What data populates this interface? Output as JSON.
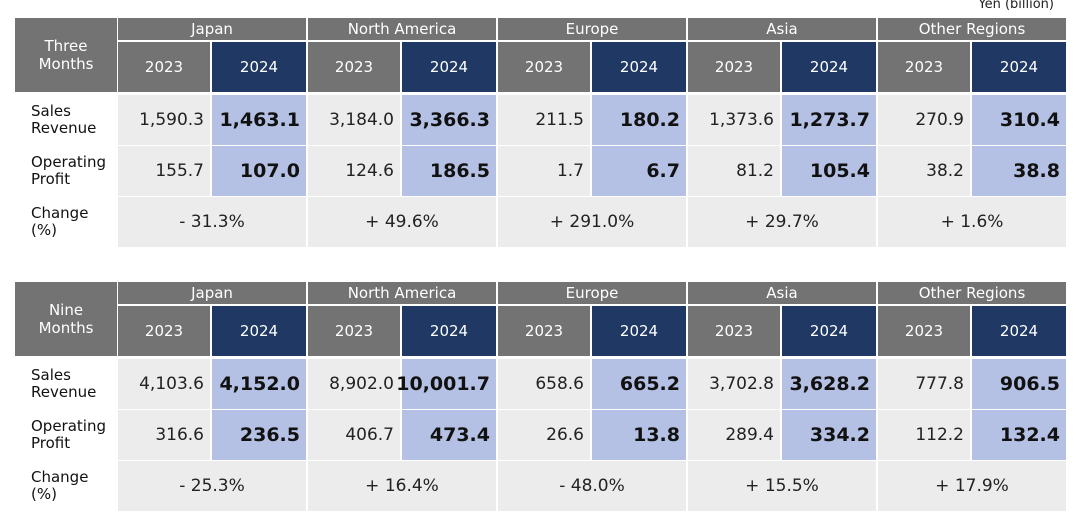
{
  "unit_label": "Yen (billion)",
  "tables": [
    {
      "period": [
        "Three",
        "Months"
      ],
      "regions": [
        "Japan",
        "North America",
        "Europe",
        "Asia",
        "Other Regions"
      ],
      "years": [
        "2023",
        "2024"
      ],
      "rows": [
        {
          "label": [
            "Sales",
            "Revenue"
          ],
          "values": [
            [
              "1,590.3",
              "1,463.1"
            ],
            [
              "3,184.0",
              "3,366.3"
            ],
            [
              "211.5",
              "180.2"
            ],
            [
              "1,373.6",
              "1,273.7"
            ],
            [
              "270.9",
              "310.4"
            ]
          ]
        },
        {
          "label": [
            "Operating",
            "Profit"
          ],
          "values": [
            [
              "155.7",
              "107.0"
            ],
            [
              "124.6",
              "186.5"
            ],
            [
              "1.7",
              "6.7"
            ],
            [
              "81.2",
              "105.4"
            ],
            [
              "38.2",
              "38.8"
            ]
          ]
        }
      ],
      "change_label": [
        "Change",
        "(%)"
      ],
      "change": [
        "- 31.3%",
        "+ 49.6%",
        "+ 291.0%",
        "+ 29.7%",
        "+ 1.6%"
      ]
    },
    {
      "period": [
        "Nine",
        "Months"
      ],
      "regions": [
        "Japan",
        "North America",
        "Europe",
        "Asia",
        "Other Regions"
      ],
      "years": [
        "2023",
        "2024"
      ],
      "rows": [
        {
          "label": [
            "Sales",
            "Revenue"
          ],
          "values": [
            [
              "4,103.6",
              "4,152.0"
            ],
            [
              "8,902.0",
              "10,001.7"
            ],
            [
              "658.6",
              "665.2"
            ],
            [
              "3,702.8",
              "3,628.2"
            ],
            [
              "777.8",
              "906.5"
            ]
          ]
        },
        {
          "label": [
            "Operating",
            "Profit"
          ],
          "values": [
            [
              "316.6",
              "236.5"
            ],
            [
              "406.7",
              "473.4"
            ],
            [
              "26.6",
              "13.8"
            ],
            [
              "289.4",
              "334.2"
            ],
            [
              "112.2",
              "132.4"
            ]
          ]
        }
      ],
      "change_label": [
        "Change",
        "(%)"
      ],
      "change": [
        "- 25.3%",
        "+ 16.4%",
        "- 48.0%",
        "+ 15.5%",
        "+ 17.9%"
      ]
    }
  ]
}
